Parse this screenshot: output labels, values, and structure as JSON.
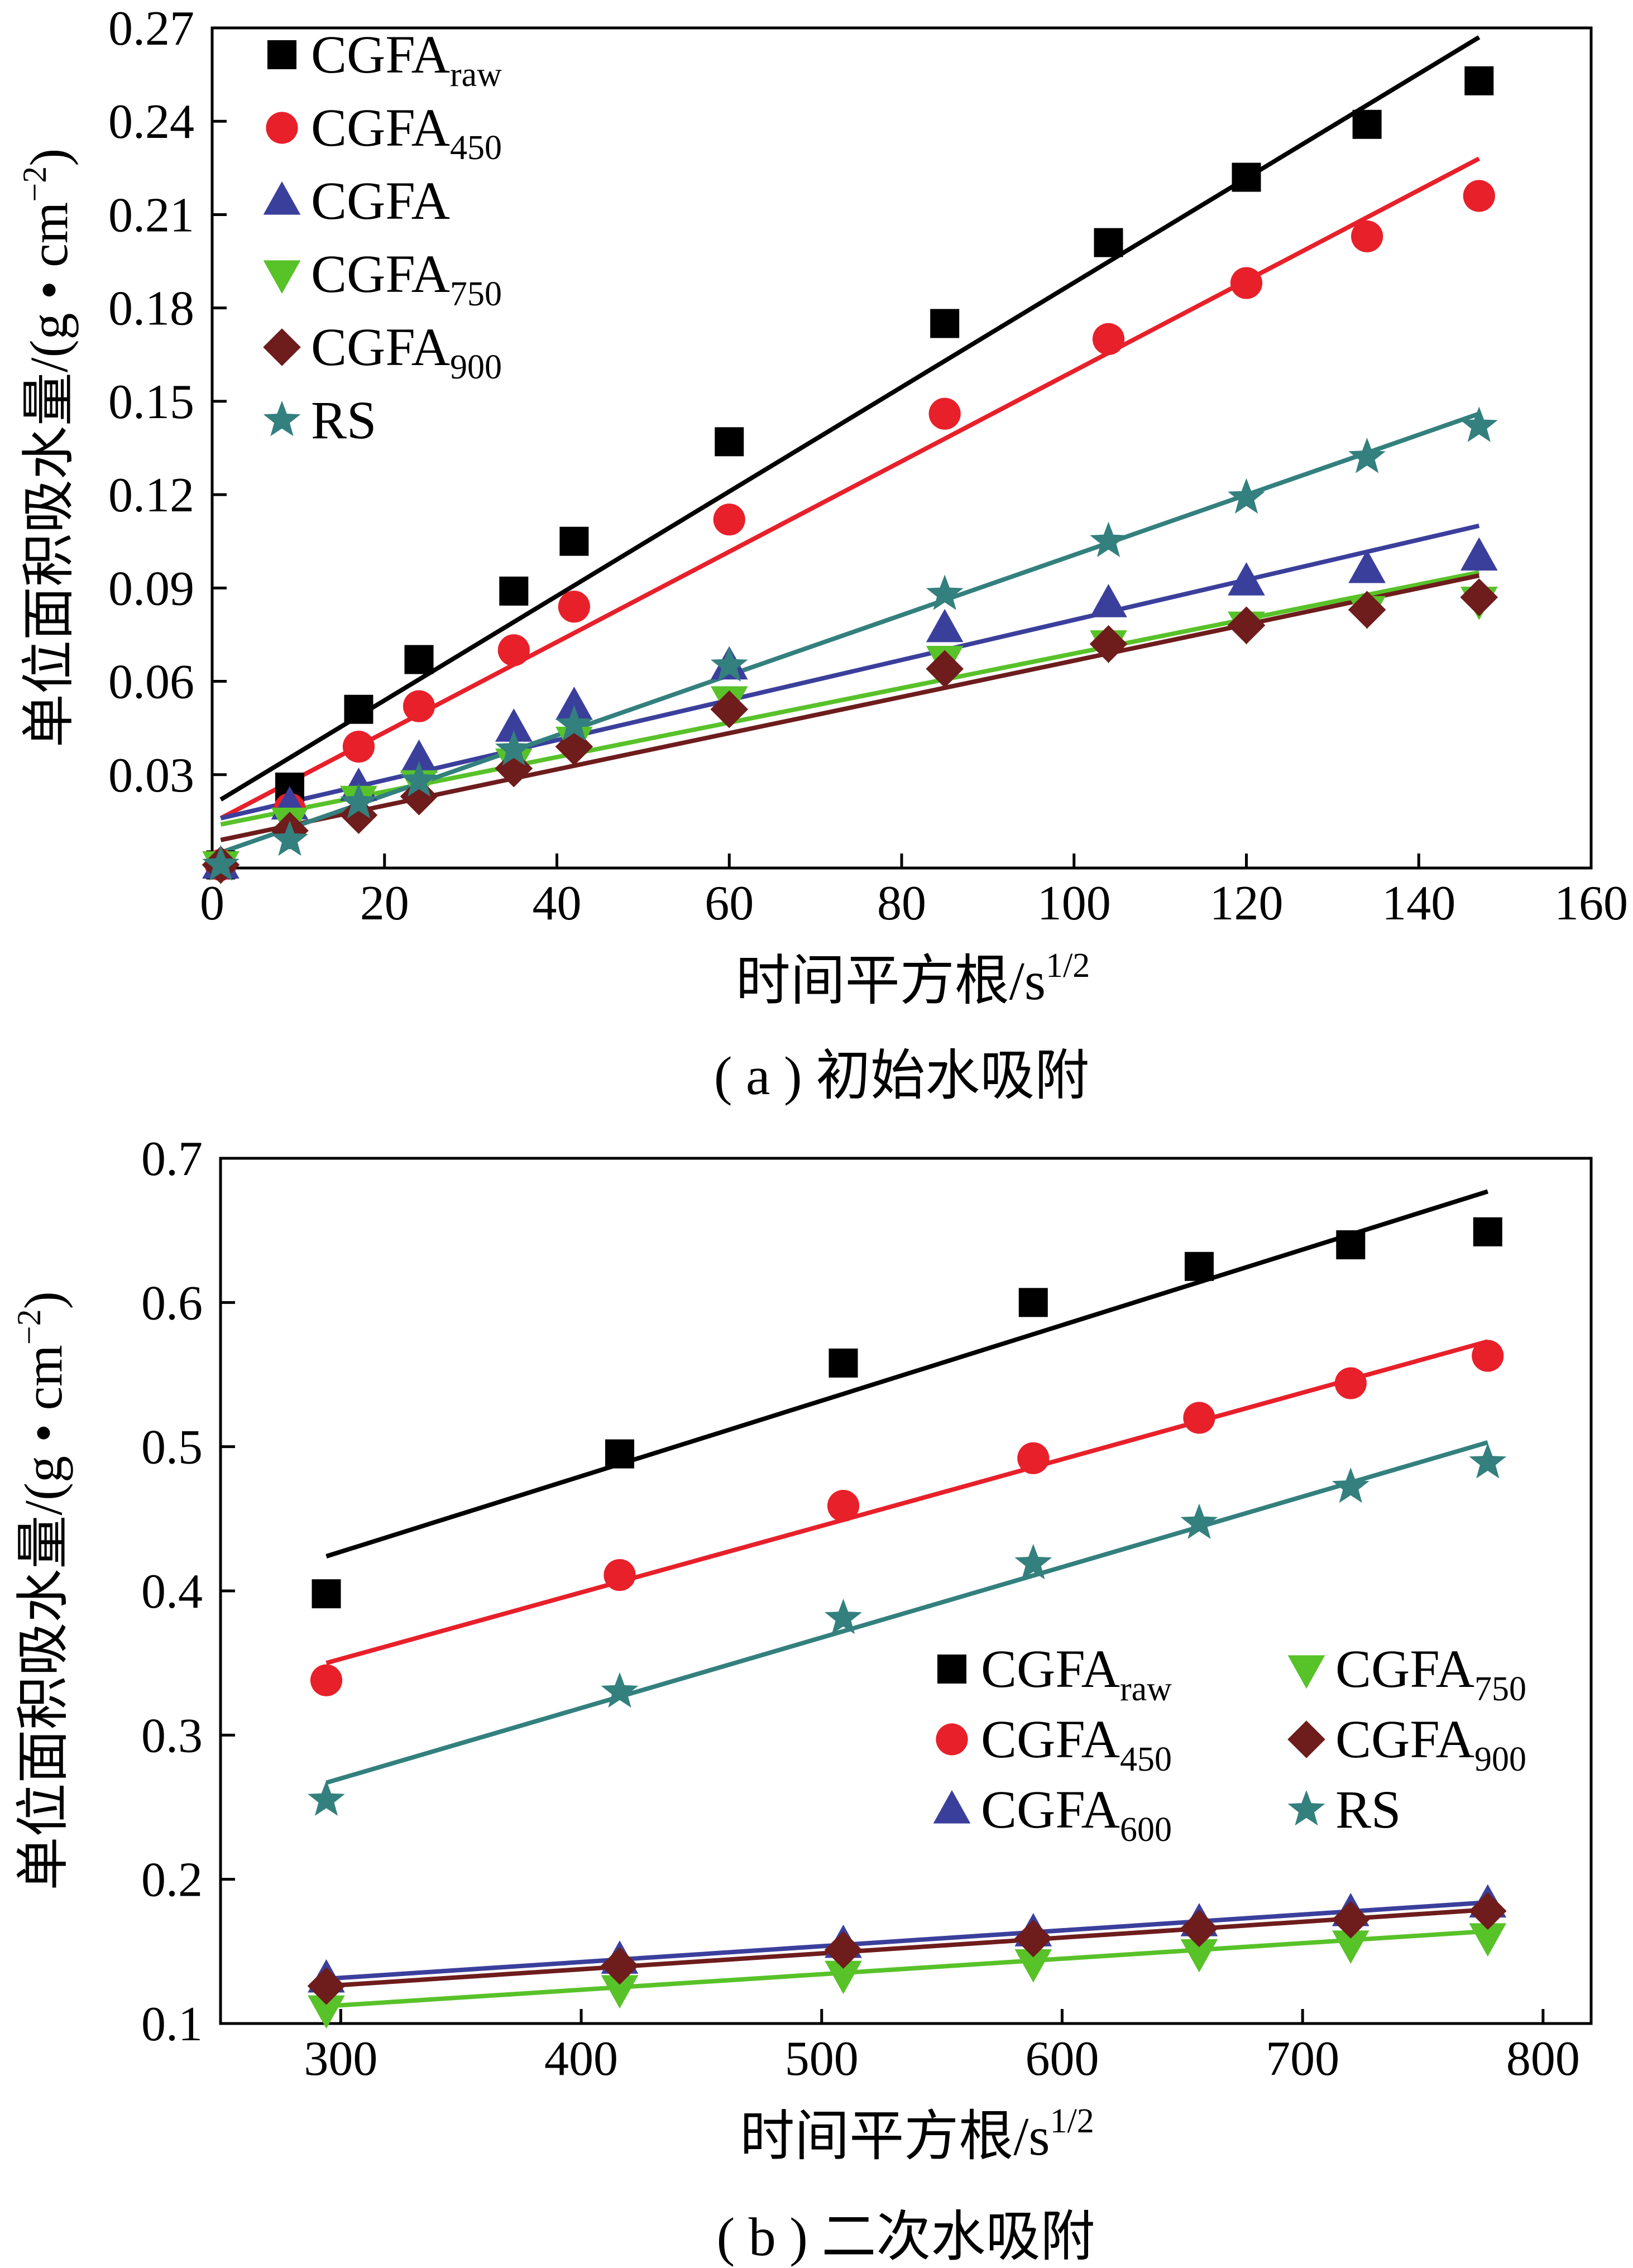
{
  "chart_data": [
    {
      "type": "scatter",
      "caption": "( a ) 初始水吸附",
      "xlabel": "时间平方根/s",
      "xlabel_sup": "1/2",
      "ylabel": "单位面积吸水量/(g • cm",
      "ylabel_sup": "−2",
      "ylabel_end": ")",
      "xlim": [
        0,
        160
      ],
      "ylim": [
        0,
        0.27
      ],
      "xticks": [
        0,
        20,
        40,
        60,
        80,
        100,
        120,
        140,
        160
      ],
      "yticks": [
        0.03,
        0.06,
        0.09,
        0.12,
        0.15,
        0.18,
        0.21,
        0.24,
        0.27
      ],
      "ytick_labels": [
        "0.03",
        "0.06",
        "0.09",
        "0.12",
        "0.15",
        "0.18",
        "0.21",
        "0.24",
        "0.27"
      ],
      "legend_position": "top-left",
      "x": [
        1,
        9,
        17,
        24,
        35,
        42,
        60,
        85,
        104,
        120,
        134,
        147
      ],
      "series": [
        {
          "name": "CGFA",
          "sub": "raw",
          "marker": "square",
          "color": "#000000",
          "values": [
            0.001,
            0.026,
            0.051,
            0.067,
            0.089,
            0.105,
            0.137,
            0.175,
            0.201,
            0.222,
            0.239,
            0.253
          ],
          "fit": [
            0.022,
            0.267
          ]
        },
        {
          "name": "CGFA",
          "sub": "450",
          "marker": "circle",
          "color": "#e8202a",
          "values": [
            0.001,
            0.019,
            0.039,
            0.052,
            0.07,
            0.084,
            0.112,
            0.146,
            0.17,
            0.188,
            0.203,
            0.216
          ],
          "fit": [
            0.016,
            0.228
          ]
        },
        {
          "name": "CGFA",
          "sub": "",
          "marker": "triangle-up",
          "color": "#3b3f9c",
          "values": [
            0.001,
            0.02,
            0.026,
            0.035,
            0.045,
            0.052,
            0.065,
            0.077,
            0.085,
            0.092,
            0.096,
            0.1
          ],
          "fit": [
            0.016,
            0.11
          ]
        },
        {
          "name": "CGFA",
          "sub": "750",
          "marker": "triangle-down",
          "color": "#58c229",
          "values": [
            0.001,
            0.015,
            0.022,
            0.027,
            0.034,
            0.041,
            0.054,
            0.067,
            0.072,
            0.078,
            0.083,
            0.086
          ],
          "fit": [
            0.014,
            0.095
          ]
        },
        {
          "name": "CGFA",
          "sub": "900",
          "marker": "diamond",
          "color": "#6e1c1c",
          "values": [
            0.001,
            0.012,
            0.017,
            0.023,
            0.032,
            0.039,
            0.051,
            0.064,
            0.072,
            0.078,
            0.083,
            0.087
          ],
          "fit": [
            0.009,
            0.094
          ]
        },
        {
          "name": "RS",
          "sub": "",
          "marker": "star",
          "color": "#33807e",
          "values": [
            0.001,
            0.009,
            0.021,
            0.028,
            0.038,
            0.046,
            0.065,
            0.088,
            0.105,
            0.119,
            0.132,
            0.142
          ],
          "fit": [
            0.005,
            0.146
          ]
        }
      ]
    },
    {
      "type": "scatter",
      "caption": "( b ) 二次水吸附",
      "xlabel": "时间平方根/s",
      "xlabel_sup": "1/2",
      "ylabel": "单位面积吸水量/(g • cm",
      "ylabel_sup": "−2",
      "ylabel_end": ")",
      "xlim": [
        250,
        820
      ],
      "ylim": [
        0.1,
        0.7
      ],
      "xticks": [
        300,
        400,
        500,
        600,
        700,
        800
      ],
      "yticks": [
        0.1,
        0.2,
        0.3,
        0.4,
        0.5,
        0.6,
        0.7
      ],
      "ytick_labels": [
        "0.1",
        "0.2",
        "0.3",
        "0.4",
        "0.5",
        "0.6",
        "0.7"
      ],
      "legend_position": "center-right",
      "x": [
        294,
        416,
        509,
        588,
        657,
        720,
        777
      ],
      "series": [
        {
          "name": "CGFA",
          "sub": "raw",
          "marker": "square",
          "color": "#000000",
          "values": [
            0.398,
            0.495,
            0.558,
            0.6,
            0.625,
            0.64,
            0.649
          ],
          "fit": [
            0.424,
            0.677
          ]
        },
        {
          "name": "CGFA",
          "sub": "450",
          "marker": "circle",
          "color": "#e8202a",
          "values": [
            0.338,
            0.411,
            0.459,
            0.492,
            0.52,
            0.544,
            0.563
          ],
          "fit": [
            0.35,
            0.573
          ]
        },
        {
          "name": "CGFA",
          "sub": "600",
          "marker": "triangle-up",
          "color": "#3b3f9c",
          "values": [
            0.131,
            0.144,
            0.155,
            0.163,
            0.17,
            0.177,
            0.183
          ],
          "fit": [
            0.131,
            0.184
          ]
        },
        {
          "name": "CGFA",
          "sub": "750",
          "marker": "triangle-down",
          "color": "#58c229",
          "values": [
            0.11,
            0.124,
            0.134,
            0.142,
            0.149,
            0.155,
            0.16
          ],
          "fit": [
            0.112,
            0.164
          ]
        },
        {
          "name": "CGFA",
          "sub": "900",
          "marker": "diamond",
          "color": "#6e1c1c",
          "values": [
            0.126,
            0.14,
            0.151,
            0.159,
            0.166,
            0.172,
            0.178
          ],
          "fit": [
            0.126,
            0.179
          ]
        },
        {
          "name": "RS",
          "sub": "",
          "marker": "star",
          "color": "#33807e",
          "values": [
            0.255,
            0.33,
            0.381,
            0.419,
            0.447,
            0.472,
            0.489
          ],
          "fit": [
            0.267,
            0.503
          ]
        }
      ]
    }
  ]
}
